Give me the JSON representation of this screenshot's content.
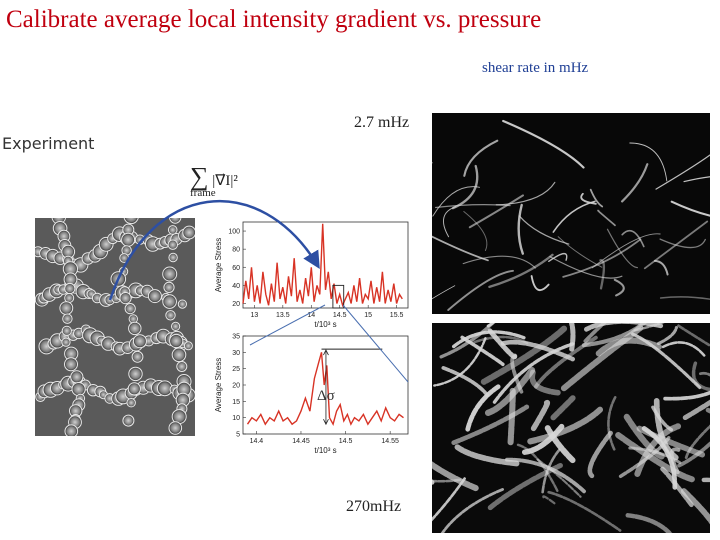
{
  "title": "Calibrate average local intensity gradient vs. pressure",
  "subtitle": "shear rate in mHz",
  "experiment_label": "Experiment",
  "rate_top": "2.7 mHz",
  "rate_bottom": "270mHz",
  "formula": {
    "sum": "∑",
    "term": "|∇⃗I|²",
    "subscript": "frame"
  },
  "delta_label": "Δσ",
  "chart_data": [
    {
      "type": "line",
      "ylabel": "Average Stress",
      "xlabel": "t/10³ s",
      "xlim": [
        12.8,
        15.7
      ],
      "ylim": [
        15,
        110
      ],
      "xticks": [
        "13",
        "13.5",
        "14",
        "14.5",
        "15",
        "15.5"
      ],
      "yticks": [
        "100",
        "80",
        "60",
        "40",
        "20"
      ],
      "series": [
        {
          "values": [
            [
              12.8,
              20
            ],
            [
              12.85,
              45
            ],
            [
              12.9,
              25
            ],
            [
              12.95,
              60
            ],
            [
              13.0,
              22
            ],
            [
              13.05,
              40
            ],
            [
              13.1,
              20
            ],
            [
              13.15,
              55
            ],
            [
              13.2,
              30
            ],
            [
              13.25,
              18
            ],
            [
              13.3,
              42
            ],
            [
              13.35,
              22
            ],
            [
              13.4,
              65
            ],
            [
              13.45,
              25
            ],
            [
              13.5,
              38
            ],
            [
              13.55,
              20
            ],
            [
              13.6,
              50
            ],
            [
              13.65,
              28
            ],
            [
              13.7,
              70
            ],
            [
              13.75,
              22
            ],
            [
              13.8,
              35
            ],
            [
              13.85,
              20
            ],
            [
              13.9,
              48
            ],
            [
              13.95,
              28
            ],
            [
              14.0,
              60
            ],
            [
              14.05,
              22
            ],
            [
              14.1,
              40
            ],
            [
              14.15,
              30
            ],
            [
              14.2,
              108
            ],
            [
              14.25,
              35
            ],
            [
              14.3,
              55
            ],
            [
              14.35,
              25
            ],
            [
              14.4,
              42
            ],
            [
              14.45,
              20
            ],
            [
              14.5,
              30
            ],
            [
              14.55,
              18
            ],
            [
              14.6,
              25
            ],
            [
              14.65,
              32
            ],
            [
              14.7,
              20
            ],
            [
              14.75,
              40
            ],
            [
              14.8,
              22
            ],
            [
              14.85,
              48
            ],
            [
              14.9,
              20
            ],
            [
              14.95,
              30
            ],
            [
              15.0,
              25
            ],
            [
              15.05,
              45
            ],
            [
              15.1,
              20
            ],
            [
              15.15,
              38
            ],
            [
              15.2,
              22
            ],
            [
              15.25,
              55
            ],
            [
              15.3,
              20
            ],
            [
              15.35,
              35
            ],
            [
              15.4,
              22
            ],
            [
              15.45,
              42
            ],
            [
              15.5,
              20
            ],
            [
              15.55,
              30
            ],
            [
              15.6,
              25
            ]
          ]
        }
      ]
    },
    {
      "type": "line",
      "ylabel": "Average Stress",
      "xlabel": "t/10³ s",
      "xlim": [
        14.385,
        14.57
      ],
      "ylim": [
        5,
        35
      ],
      "xticks": [
        "14.4",
        "14.45",
        "14.5",
        "14.55"
      ],
      "yticks": [
        "35",
        "30",
        "25",
        "20",
        "15",
        "10",
        "5"
      ],
      "series": [
        {
          "values": [
            [
              14.39,
              8
            ],
            [
              14.395,
              10
            ],
            [
              14.4,
              9
            ],
            [
              14.405,
              11
            ],
            [
              14.41,
              8
            ],
            [
              14.415,
              10
            ],
            [
              14.42,
              9
            ],
            [
              14.425,
              12
            ],
            [
              14.43,
              9
            ],
            [
              14.435,
              10
            ],
            [
              14.44,
              8
            ],
            [
              14.445,
              9
            ],
            [
              14.45,
              12
            ],
            [
              14.455,
              16
            ],
            [
              14.46,
              12
            ],
            [
              14.465,
              22
            ],
            [
              14.47,
              27
            ],
            [
              14.473,
              30
            ],
            [
              14.476,
              20
            ],
            [
              14.479,
              26
            ],
            [
              14.482,
              10
            ],
            [
              14.486,
              8
            ],
            [
              14.49,
              12
            ],
            [
              14.494,
              14
            ],
            [
              14.498,
              9
            ],
            [
              14.502,
              11
            ],
            [
              14.506,
              8
            ],
            [
              14.51,
              10
            ],
            [
              14.515,
              9
            ],
            [
              14.52,
              11
            ],
            [
              14.525,
              8
            ],
            [
              14.53,
              10
            ],
            [
              14.535,
              12
            ],
            [
              14.54,
              9
            ],
            [
              14.545,
              13
            ],
            [
              14.55,
              10
            ],
            [
              14.555,
              9
            ],
            [
              14.56,
              11
            ],
            [
              14.565,
              10
            ]
          ]
        }
      ]
    }
  ]
}
